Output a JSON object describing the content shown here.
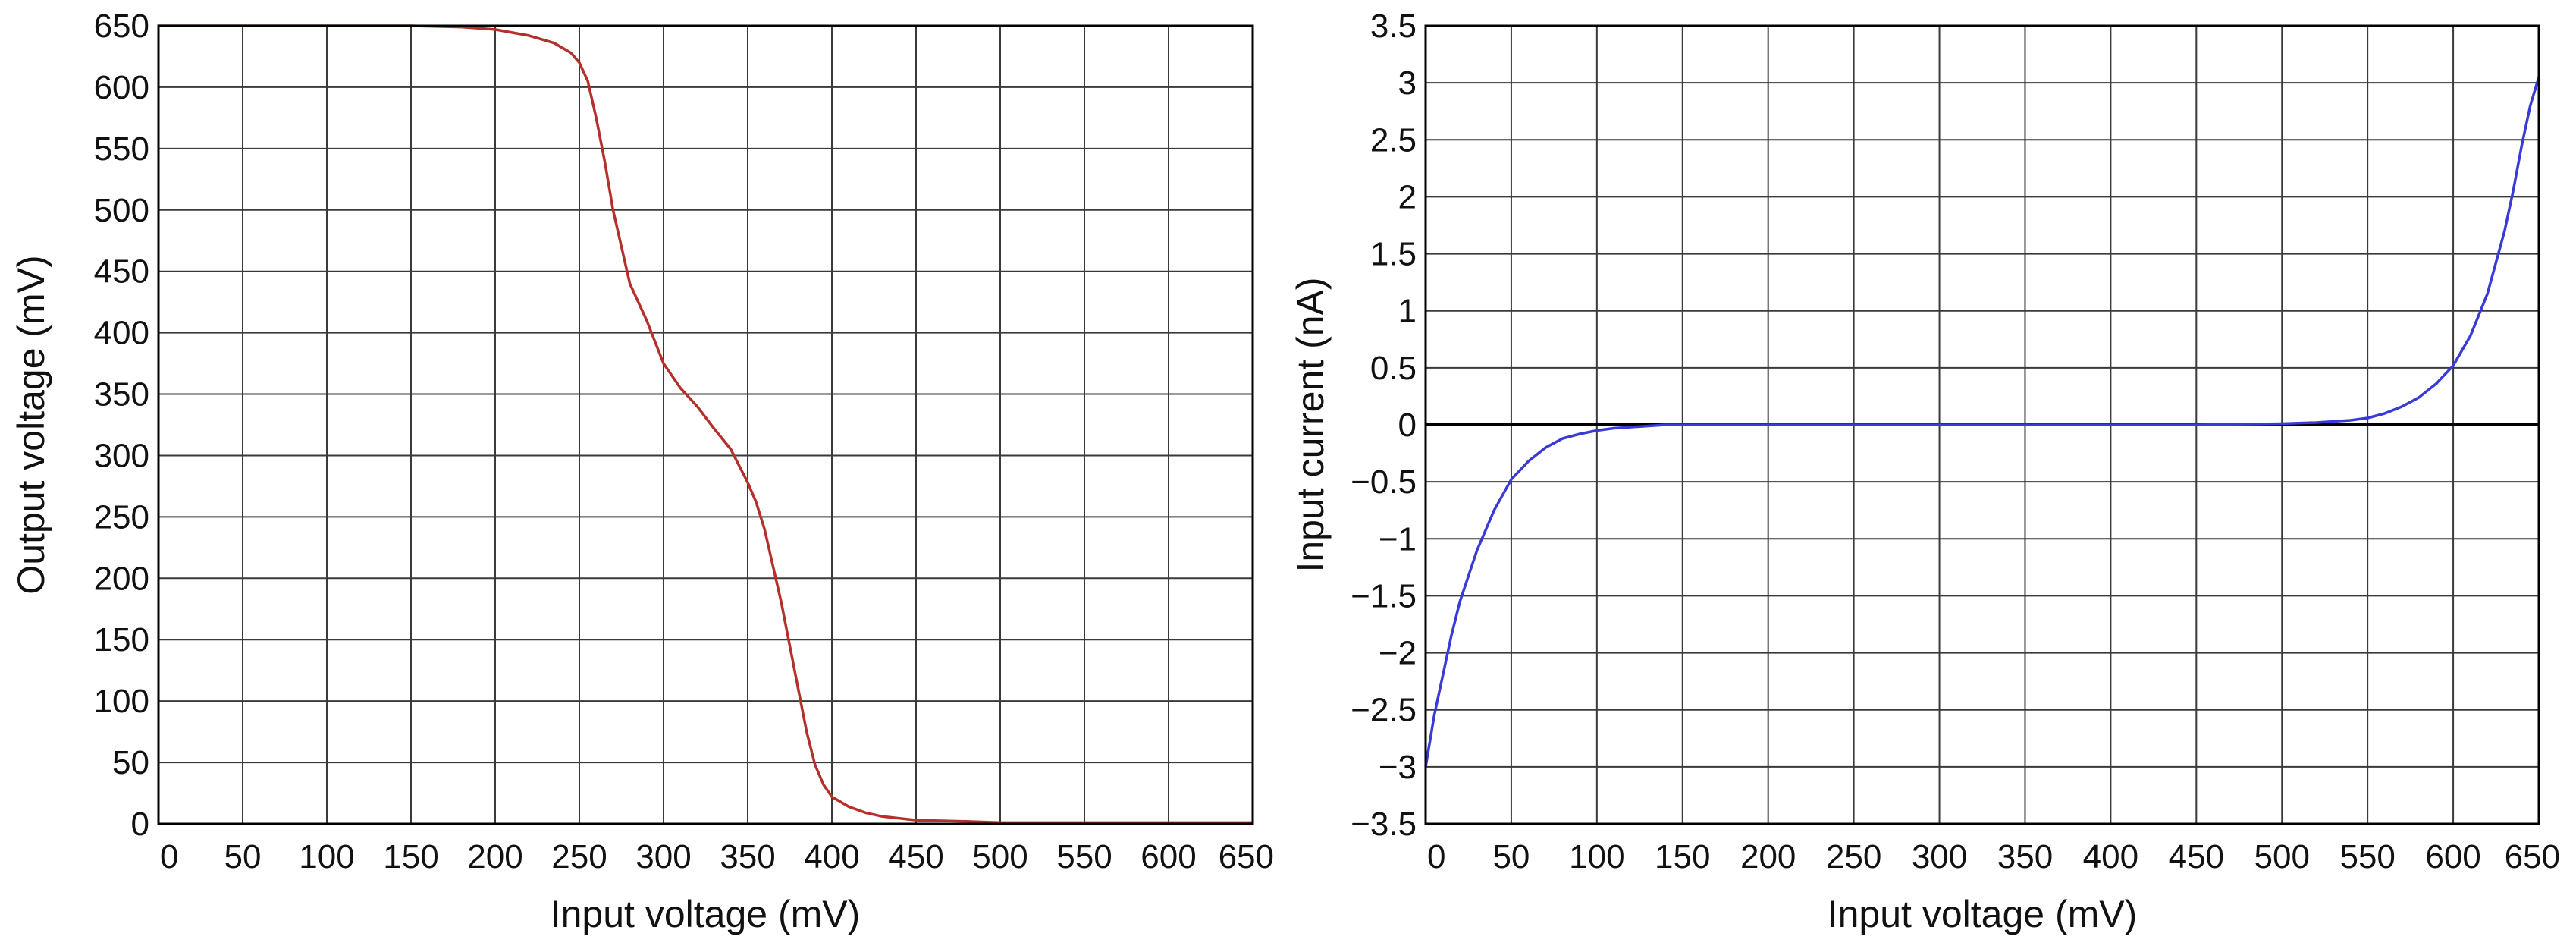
{
  "chart_data": [
    {
      "type": "line",
      "title": "",
      "xlabel": "Input voltage (mV)",
      "ylabel": "Output voltage (mV)",
      "xlim": [
        0,
        650
      ],
      "ylim": [
        0,
        650
      ],
      "xticks": [
        "0",
        "50",
        "100",
        "150",
        "200",
        "250",
        "300",
        "350",
        "400",
        "450",
        "500",
        "550",
        "600",
        "650"
      ],
      "yticks": [
        "0",
        "50",
        "100",
        "150",
        "200",
        "250",
        "300",
        "350",
        "400",
        "450",
        "500",
        "550",
        "600",
        "650"
      ],
      "grid": true,
      "series": [
        {
          "color": "#b5302b",
          "x": [
            0,
            150,
            180,
            200,
            220,
            235,
            245,
            250,
            255,
            260,
            265,
            270,
            275,
            280,
            290,
            300,
            310,
            320,
            330,
            340,
            350,
            355,
            360,
            365,
            370,
            375,
            380,
            385,
            390,
            395,
            400,
            410,
            420,
            430,
            450,
            480,
            500,
            550,
            650
          ],
          "y": [
            650,
            650,
            649,
            647,
            642,
            636,
            628,
            620,
            605,
            575,
            540,
            500,
            470,
            440,
            410,
            375,
            355,
            340,
            322,
            305,
            278,
            262,
            240,
            210,
            180,
            145,
            110,
            75,
            48,
            32,
            22,
            14,
            9,
            6,
            3,
            2,
            1,
            1,
            1
          ]
        }
      ]
    },
    {
      "type": "line",
      "title": "",
      "xlabel": "Input voltage (mV)",
      "ylabel": "Input current (nA)",
      "xlim": [
        0,
        650
      ],
      "ylim": [
        -3.5,
        3.5
      ],
      "xticks": [
        "0",
        "50",
        "100",
        "150",
        "200",
        "250",
        "300",
        "350",
        "400",
        "450",
        "500",
        "550",
        "600",
        "650"
      ],
      "yticks": [
        "3.5",
        "3",
        "2.5",
        "2",
        "1.5",
        "1",
        "0.5",
        "0",
        "−0.5",
        "−1",
        "−1.5",
        "−2",
        "−2.5",
        "−3",
        "−3.5"
      ],
      "grid": true,
      "series": [
        {
          "color": "#3a3ad6",
          "x": [
            0,
            5,
            10,
            15,
            20,
            30,
            40,
            50,
            60,
            70,
            80,
            90,
            100,
            110,
            120,
            130,
            140,
            150,
            300,
            450,
            500,
            520,
            540,
            550,
            560,
            570,
            580,
            590,
            600,
            610,
            620,
            630,
            635,
            640,
            645,
            650
          ],
          "y": [
            -3.0,
            -2.55,
            -2.2,
            -1.85,
            -1.55,
            -1.1,
            -0.75,
            -0.48,
            -0.32,
            -0.2,
            -0.12,
            -0.08,
            -0.05,
            -0.03,
            -0.02,
            -0.01,
            0.0,
            0.0,
            0.0,
            0.0,
            0.01,
            0.02,
            0.04,
            0.06,
            0.1,
            0.16,
            0.24,
            0.36,
            0.52,
            0.78,
            1.15,
            1.7,
            2.05,
            2.45,
            2.8,
            3.05
          ]
        }
      ]
    }
  ]
}
